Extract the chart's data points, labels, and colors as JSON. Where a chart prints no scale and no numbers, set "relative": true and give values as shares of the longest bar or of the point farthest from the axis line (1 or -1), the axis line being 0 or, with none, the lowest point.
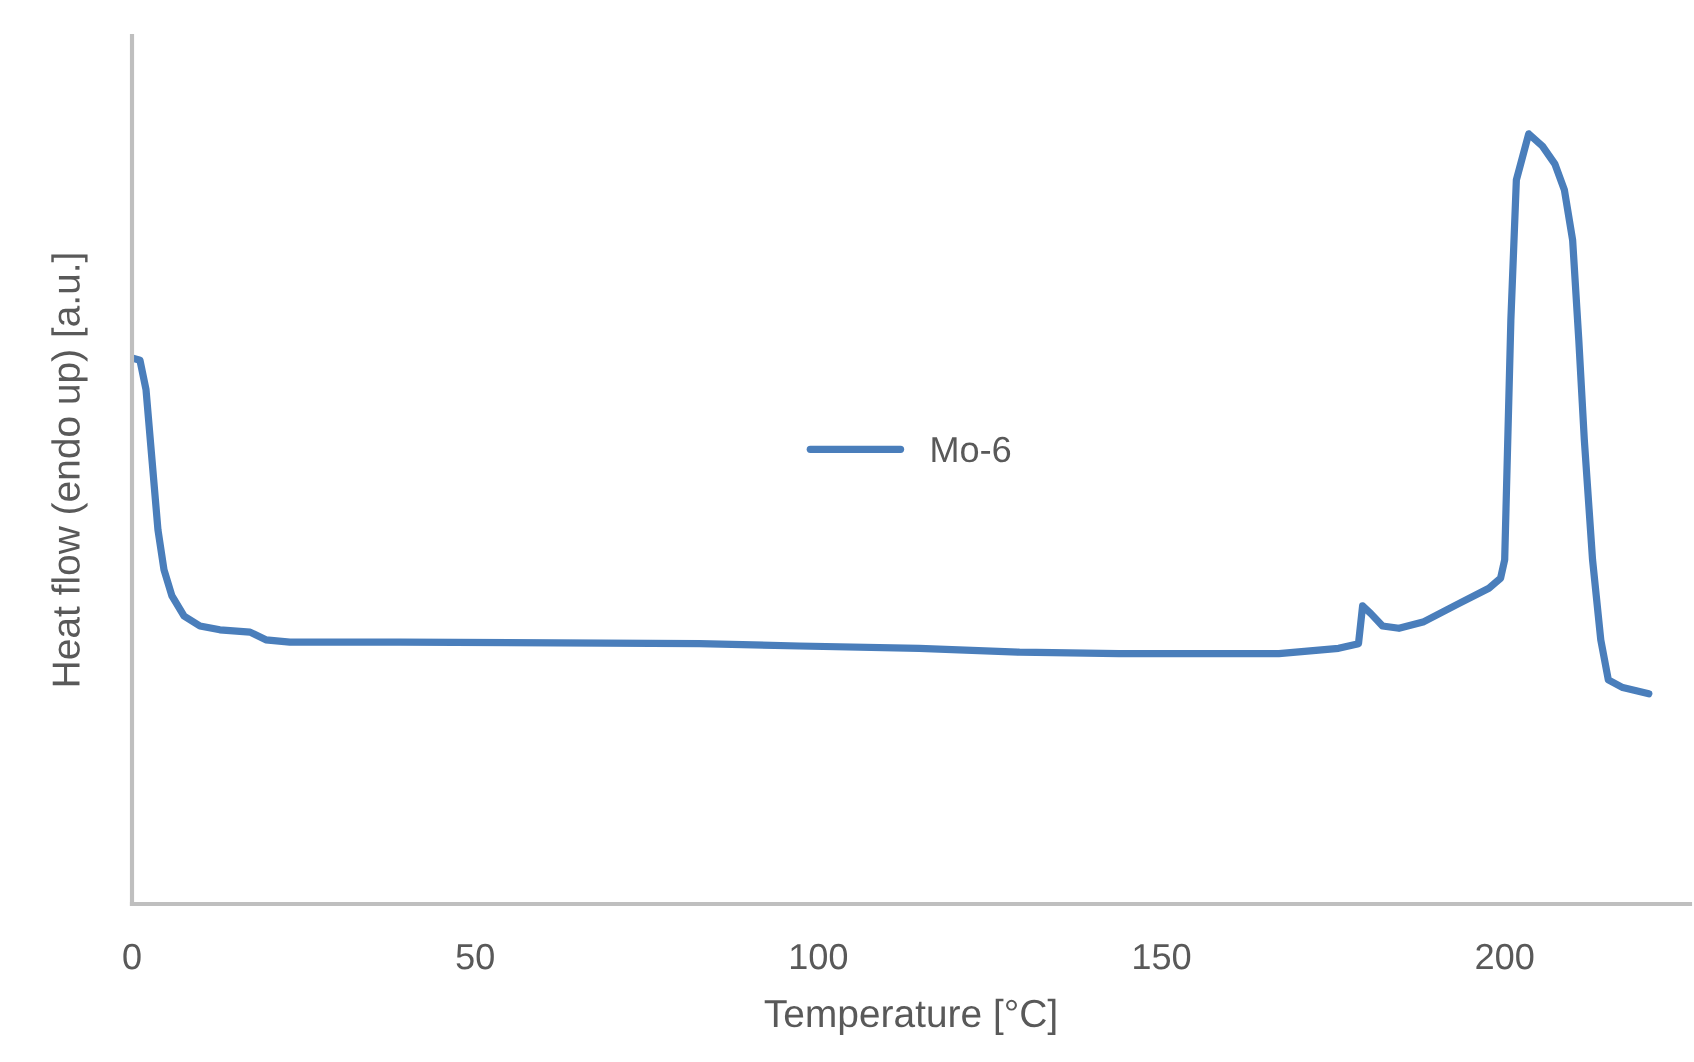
{
  "chart_data": {
    "type": "line",
    "xlabel": "Temperature [°C]",
    "ylabel": "Heat flow (endo up) [a.u.]",
    "relative": true,
    "xlim": [
      0,
      227
    ],
    "xticks": [
      0,
      50,
      100,
      150,
      200
    ],
    "grid": false,
    "legend": "center",
    "marker": "none",
    "line_style": "solid",
    "series": [
      {
        "name": "Mo-6",
        "color": "#4a7ebb",
        "x": [
          0,
          1.16,
          2.04,
          2.91,
          3.78,
          4.66,
          5.82,
          7.57,
          9.9,
          12.8,
          17.2,
          19.5,
          23.0,
          39.0,
          82.7,
          97.2,
          114.7,
          129.3,
          143.8,
          167.1,
          175.8,
          178.7,
          179.3,
          180.5,
          182.2,
          184.6,
          188.1,
          193.3,
          197.7,
          199.4,
          200.0,
          200.9,
          201.7,
          203.5,
          205.5,
          207.3,
          208.7,
          209.9,
          210.8,
          211.6,
          212.8,
          214.0,
          215.1,
          217.2,
          221.0
        ],
        "values": [
          0.709,
          0.706,
          0.668,
          0.577,
          0.486,
          0.434,
          0.4,
          0.374,
          0.361,
          0.356,
          0.353,
          0.343,
          0.34,
          0.34,
          0.338,
          0.335,
          0.332,
          0.327,
          0.325,
          0.325,
          0.332,
          0.338,
          0.387,
          0.377,
          0.361,
          0.358,
          0.366,
          0.39,
          0.41,
          0.423,
          0.447,
          0.758,
          0.94,
          1,
          0.984,
          0.961,
          0.927,
          0.862,
          0.732,
          0.603,
          0.447,
          0.343,
          0.291,
          0.281,
          0.273
        ]
      }
    ]
  }
}
